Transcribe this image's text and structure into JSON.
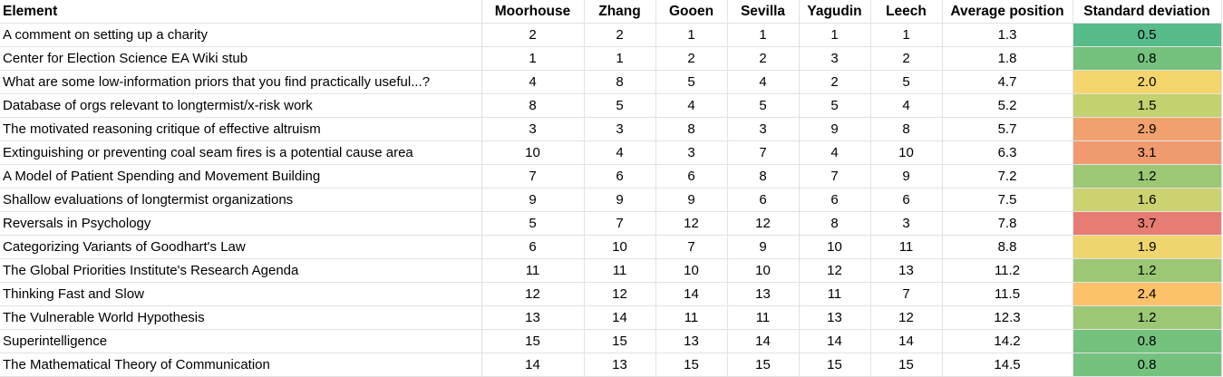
{
  "columns": [
    "Element",
    "Moorhouse",
    "Zhang",
    "Gooen",
    "Sevilla",
    "Yagudin",
    "Leech",
    "Average position",
    "Standard deviation"
  ],
  "rows": [
    {
      "element": "A comment on setting up a charity",
      "values": [
        "2",
        "2",
        "1",
        "1",
        "1",
        "1"
      ],
      "average": "1.3",
      "sd": "0.5",
      "sd_color": "#57bb8a"
    },
    {
      "element": "Center for Election Science EA Wiki stub",
      "values": [
        "1",
        "1",
        "2",
        "2",
        "3",
        "2"
      ],
      "average": "1.8",
      "sd": "0.8",
      "sd_color": "#74c27e"
    },
    {
      "element": "What are some low-information priors that you find practically useful...?",
      "values": [
        "4",
        "8",
        "5",
        "4",
        "2",
        "5"
      ],
      "average": "4.7",
      "sd": "2.0",
      "sd_color": "#f4d56c"
    },
    {
      "element": "Database of orgs relevant to longtermist/x-risk work",
      "values": [
        "8",
        "5",
        "4",
        "5",
        "5",
        "4"
      ],
      "average": "5.2",
      "sd": "1.5",
      "sd_color": "#c3d16f"
    },
    {
      "element": "The motivated reasoning critique of effective altruism",
      "values": [
        "3",
        "3",
        "8",
        "3",
        "9",
        "8"
      ],
      "average": "5.7",
      "sd": "2.9",
      "sd_color": "#f1a16e"
    },
    {
      "element": "Extinguishing or preventing coal seam fires is a potential cause area",
      "values": [
        "10",
        "4",
        "3",
        "7",
        "4",
        "10"
      ],
      "average": "6.3",
      "sd": "3.1",
      "sd_color": "#f09a6f"
    },
    {
      "element": "A Model of Patient Spending and Movement Building",
      "values": [
        "7",
        "6",
        "6",
        "8",
        "7",
        "9"
      ],
      "average": "7.2",
      "sd": "1.2",
      "sd_color": "#9cc876"
    },
    {
      "element": "Shallow evaluations of longtermist organizations",
      "values": [
        "9",
        "9",
        "9",
        "6",
        "6",
        "6"
      ],
      "average": "7.5",
      "sd": "1.6",
      "sd_color": "#ccd26f"
    },
    {
      "element": "Reversals in Psychology",
      "values": [
        "5",
        "7",
        "12",
        "12",
        "8",
        "3"
      ],
      "average": "7.8",
      "sd": "3.7",
      "sd_color": "#e67c73"
    },
    {
      "element": "Categorizing Variants of Goodhart's Law",
      "values": [
        "6",
        "10",
        "7",
        "9",
        "10",
        "11"
      ],
      "average": "8.8",
      "sd": "1.9",
      "sd_color": "#efd56d"
    },
    {
      "element": "The Global Priorities Institute's Research Agenda",
      "values": [
        "11",
        "11",
        "10",
        "10",
        "12",
        "13"
      ],
      "average": "11.2",
      "sd": "1.2",
      "sd_color": "#9cc876"
    },
    {
      "element": "Thinking Fast and Slow",
      "values": [
        "12",
        "12",
        "14",
        "13",
        "11",
        "7"
      ],
      "average": "11.5",
      "sd": "2.4",
      "sd_color": "#fbc26a"
    },
    {
      "element": "The Vulnerable World Hypothesis",
      "values": [
        "13",
        "14",
        "11",
        "11",
        "13",
        "12"
      ],
      "average": "12.3",
      "sd": "1.2",
      "sd_color": "#9cc876"
    },
    {
      "element": "Superintelligence",
      "values": [
        "15",
        "15",
        "13",
        "14",
        "14",
        "14"
      ],
      "average": "14.2",
      "sd": "0.8",
      "sd_color": "#74c27e"
    },
    {
      "element": "The Mathematical Theory of Communication",
      "values": [
        "14",
        "13",
        "15",
        "15",
        "15",
        "15"
      ],
      "average": "14.5",
      "sd": "0.8",
      "sd_color": "#74c27e"
    }
  ]
}
